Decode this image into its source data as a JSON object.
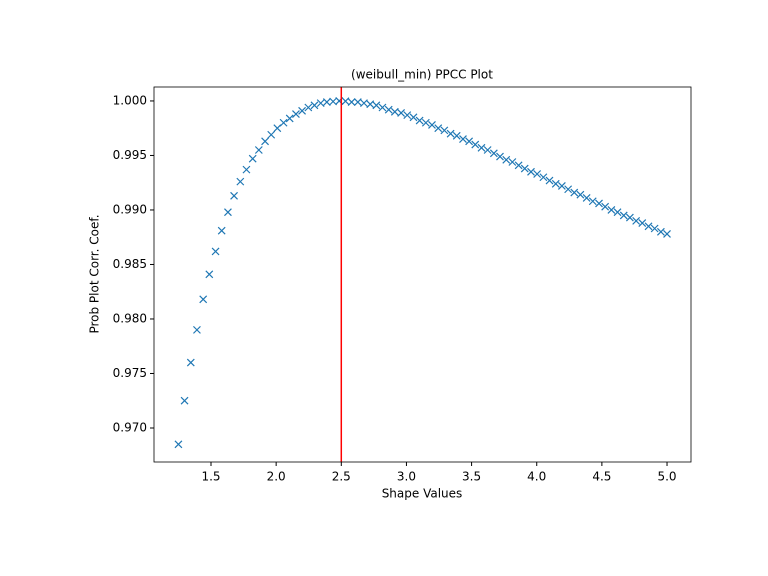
{
  "chart_data": {
    "type": "scatter",
    "title": "(weibull_min) PPCC Plot",
    "x_label": "Shape Values",
    "y_label": "Prob Plot Corr. Coef.",
    "marker": "x",
    "color": "#1f77b4",
    "x": [
      1.25,
      1.297,
      1.345,
      1.392,
      1.44,
      1.487,
      1.535,
      1.582,
      1.63,
      1.677,
      1.725,
      1.772,
      1.82,
      1.867,
      1.915,
      1.962,
      2.009,
      2.057,
      2.104,
      2.152,
      2.199,
      2.247,
      2.294,
      2.342,
      2.389,
      2.437,
      2.484,
      2.532,
      2.579,
      2.627,
      2.674,
      2.722,
      2.769,
      2.816,
      2.864,
      2.911,
      2.959,
      3.006,
      3.054,
      3.101,
      3.149,
      3.196,
      3.244,
      3.291,
      3.339,
      3.386,
      3.434,
      3.481,
      3.528,
      3.576,
      3.623,
      3.671,
      3.718,
      3.766,
      3.813,
      3.861,
      3.908,
      3.956,
      4.003,
      4.051,
      4.098,
      4.146,
      4.193,
      4.241,
      4.288,
      4.335,
      4.383,
      4.43,
      4.478,
      4.525,
      4.573,
      4.62,
      4.668,
      4.715,
      4.763,
      4.81,
      4.858,
      4.905,
      4.953,
      5.0
    ],
    "values": [
      0.9685,
      0.9725,
      0.976,
      0.979,
      0.9818,
      0.9841,
      0.9862,
      0.9881,
      0.9898,
      0.9913,
      0.9926,
      0.9937,
      0.9947,
      0.9955,
      0.9963,
      0.9969,
      0.9975,
      0.998,
      0.9984,
      0.9988,
      0.9991,
      0.9994,
      0.9996,
      0.9998,
      0.9999,
      0.99995,
      1.0,
      0.99998,
      0.9999,
      0.9999,
      0.9998,
      0.9997,
      0.9996,
      0.9994,
      0.9992,
      0.999,
      0.9989,
      0.9987,
      0.9985,
      0.9982,
      0.998,
      0.9978,
      0.9975,
      0.9973,
      0.997,
      0.9968,
      0.9965,
      0.9963,
      0.996,
      0.9957,
      0.9955,
      0.9952,
      0.9949,
      0.9946,
      0.9944,
      0.9941,
      0.9938,
      0.9935,
      0.9933,
      0.993,
      0.9927,
      0.9924,
      0.9922,
      0.9919,
      0.9916,
      0.9914,
      0.9911,
      0.9908,
      0.9906,
      0.9903,
      0.99,
      0.9898,
      0.9895,
      0.9893,
      0.989,
      0.9888,
      0.9885,
      0.9883,
      0.988,
      0.9878
    ],
    "vline": 2.5,
    "vline_color": "#ff0000",
    "xlim": [
      1.0625,
      5.184
    ],
    "ylim": [
      0.96688,
      1.00128
    ],
    "xticks": [
      1.5,
      {
        "value": 2.0,
        "label": "2.0"
      },
      2.5,
      {
        "value": 3.0,
        "label": "3.0"
      },
      3.5,
      {
        "value": 4.0,
        "label": "4.0"
      },
      4.5,
      {
        "value": 5.0,
        "label": "5.0"
      }
    ],
    "yticks": [
      {
        "value": 0.97,
        "label": "0.970"
      },
      0.975,
      {
        "value": 0.98,
        "label": "0.980"
      },
      0.985,
      {
        "value": 0.99,
        "label": "0.990"
      },
      0.995,
      {
        "value": 1.0,
        "label": "1.000"
      }
    ]
  }
}
